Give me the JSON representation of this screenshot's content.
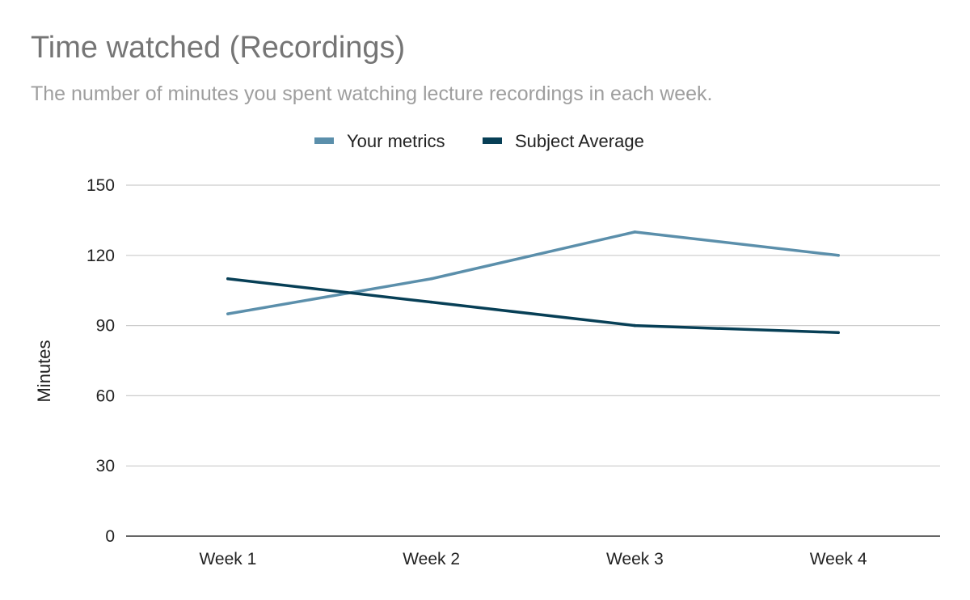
{
  "chart_data": {
    "type": "line",
    "title": "Time watched (Recordings)",
    "subtitle": "The number of minutes you spent watching lecture recordings in each week.",
    "xlabel": "",
    "ylabel": "Minutes",
    "categories": [
      "Week 1",
      "Week 2",
      "Week 3",
      "Week 4"
    ],
    "ylim": [
      0,
      150
    ],
    "yticks": [
      0,
      30,
      60,
      90,
      120,
      150
    ],
    "grid": true,
    "legend_position": "top-center",
    "series": [
      {
        "name": "Your metrics",
        "color": "#5b8fab",
        "values": [
          95,
          110,
          130,
          120
        ]
      },
      {
        "name": "Subject Average",
        "color": "#073f56",
        "values": [
          110,
          100,
          90,
          87
        ]
      }
    ]
  }
}
